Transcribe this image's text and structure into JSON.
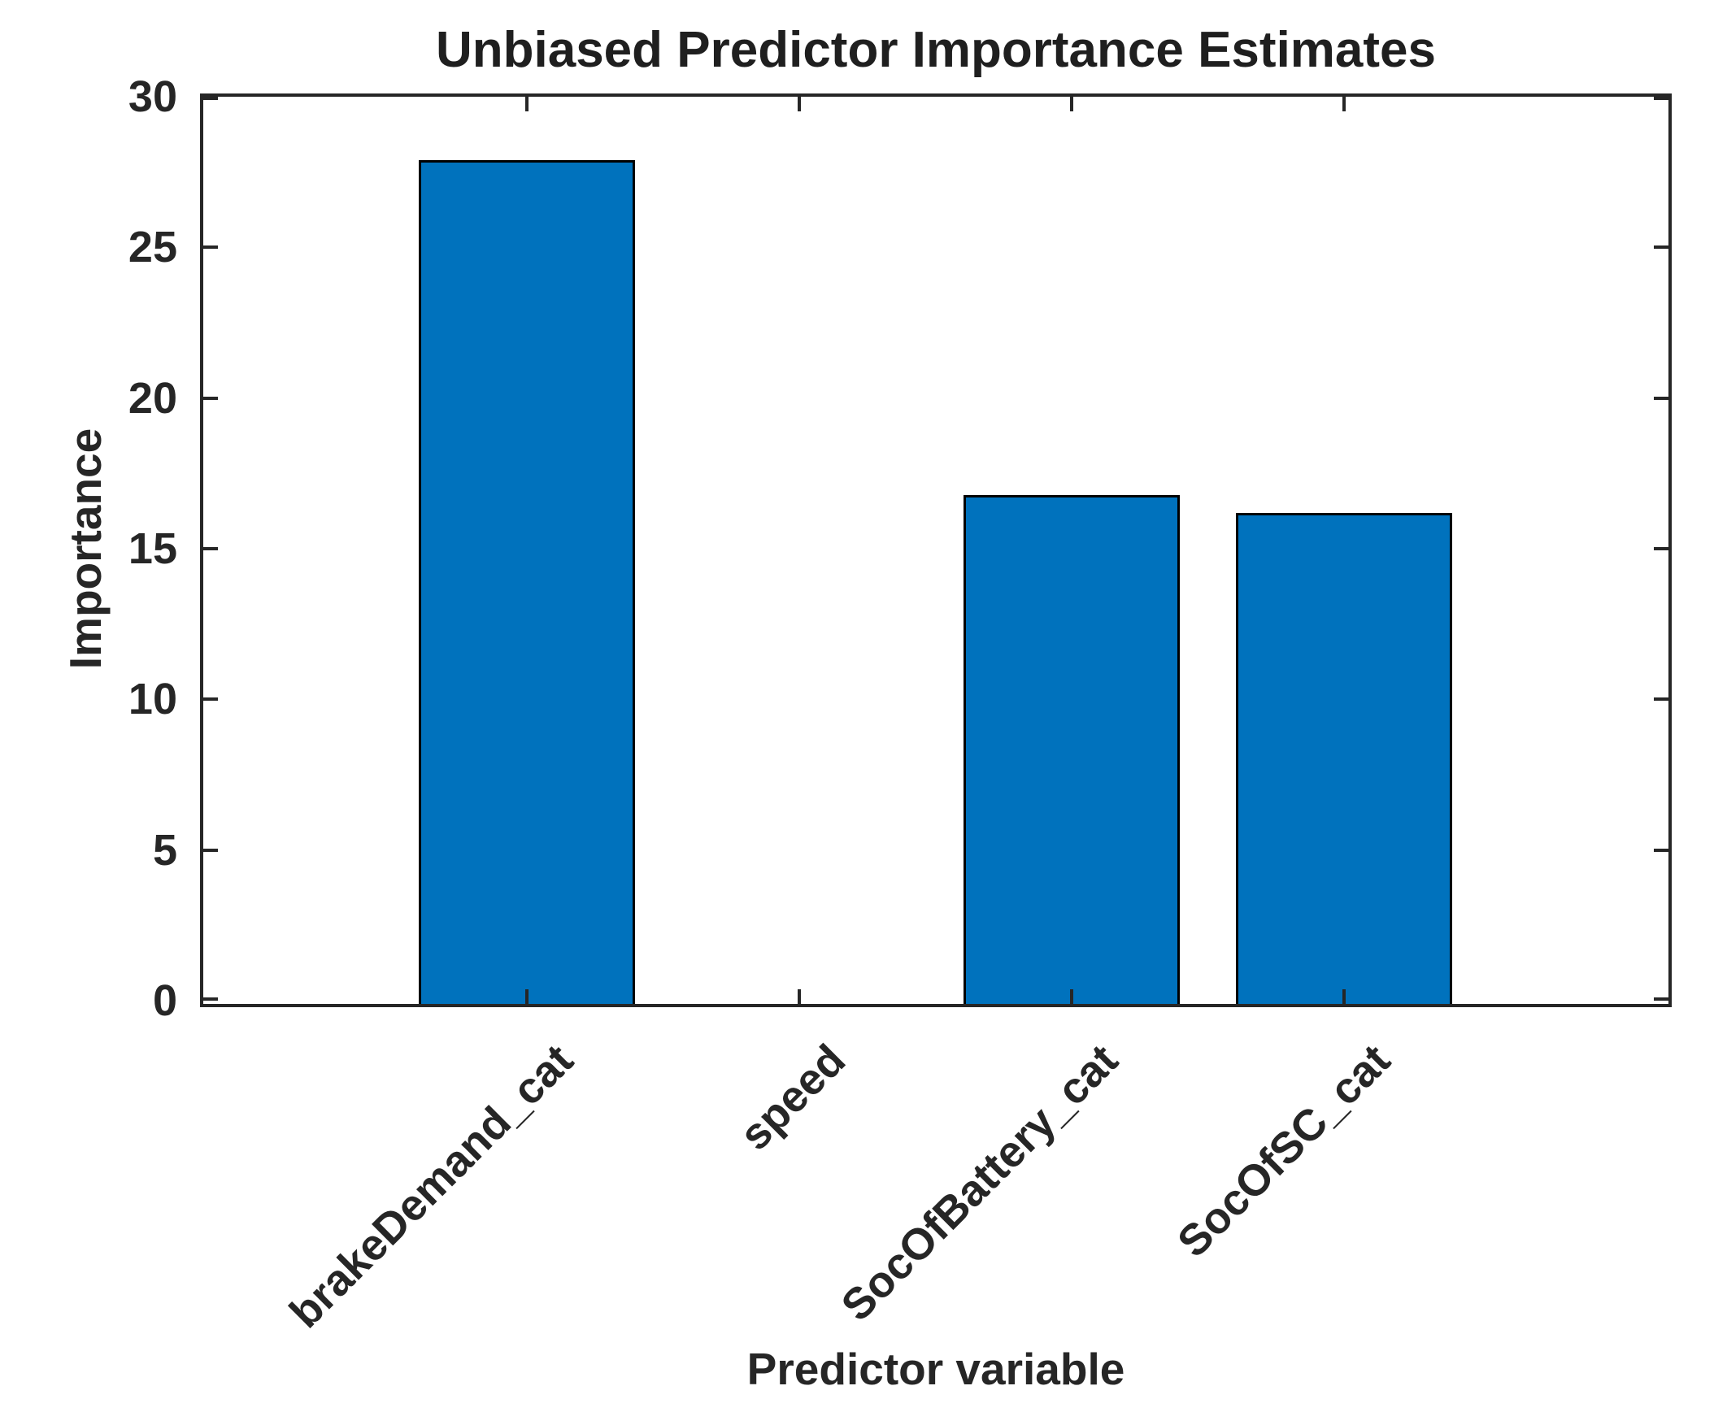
{
  "chart_data": {
    "type": "bar",
    "title": "Unbiased Predictor Importance Estimates",
    "xlabel": "Predictor variable",
    "ylabel": "Importance",
    "categories": [
      "brakeDemand_cat",
      "speed",
      "SocOfBattery_cat",
      "SocOfSC_cat"
    ],
    "values": [
      28.0,
      0,
      16.9,
      16.3
    ],
    "ylim": [
      0,
      30
    ],
    "yticks": [
      0,
      5,
      10,
      15,
      20,
      25,
      30
    ],
    "x_tick_rotation_deg": 45,
    "grid": false,
    "legend": null,
    "box": true,
    "tick_direction": "in",
    "bar_color": "#0072BD",
    "bar_edge_color": "#000000",
    "axis_color": "#262626",
    "background_color": "#ffffff"
  }
}
